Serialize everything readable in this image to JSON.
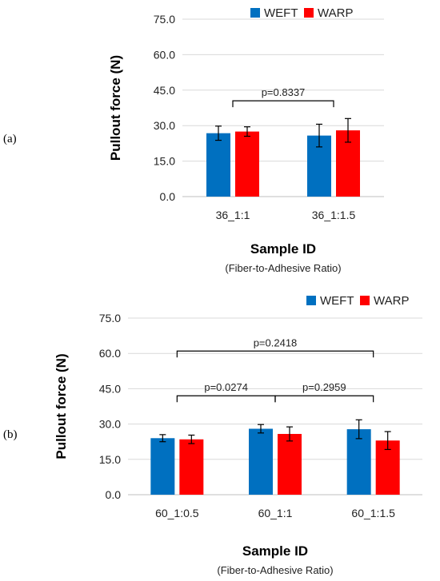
{
  "panels": [
    {
      "label": "(a)",
      "chart_data": {
        "type": "bar",
        "categories": [
          "36_1:1",
          "36_1:1.5"
        ],
        "series": [
          {
            "name": "WEFT",
            "color": "#0070C0",
            "values": [
              26.8,
              25.8
            ],
            "errors": [
              3.0,
              4.8
            ]
          },
          {
            "name": "WARP",
            "color": "#FF0000",
            "values": [
              27.5,
              28.0
            ],
            "errors": [
              2.0,
              5.0
            ]
          }
        ],
        "ylim": [
          0,
          75
        ],
        "yticks": [
          "0.0",
          "15.0",
          "30.0",
          "45.0",
          "60.0",
          "75.0"
        ],
        "ylabel": "Pullout force (N)",
        "xlabel": "Sample ID",
        "xsublabel": "(Fiber-to-Adhesive Ratio)",
        "legend_position": "top-right",
        "annotations": [
          {
            "text": "p=0.8337",
            "from": 0,
            "to": 1,
            "y": 40.5
          }
        ]
      }
    },
    {
      "label": "(b)",
      "chart_data": {
        "type": "bar",
        "categories": [
          "60_1:0.5",
          "60_1:1",
          "60_1:1.5"
        ],
        "series": [
          {
            "name": "WEFT",
            "color": "#0070C0",
            "values": [
              24.0,
              28.0,
              27.8
            ],
            "errors": [
              1.5,
              1.8,
              4.0
            ]
          },
          {
            "name": "WARP",
            "color": "#FF0000",
            "values": [
              23.5,
              25.8,
              23.0
            ],
            "errors": [
              1.8,
              3.0,
              3.8
            ]
          }
        ],
        "ylim": [
          0,
          75
        ],
        "yticks": [
          "0.0",
          "15.0",
          "30.0",
          "45.0",
          "60.0",
          "75.0"
        ],
        "ylabel": "Pullout force (N)",
        "xlabel": "Sample ID",
        "xsublabel": "(Fiber-to-Adhesive Ratio)",
        "legend_position": "top-right",
        "annotations": [
          {
            "text": "p=0.0274",
            "from": 0,
            "to": 1,
            "y": 42
          },
          {
            "text": "p=0.2959",
            "from": 1,
            "to": 2,
            "y": 42
          },
          {
            "text": "p=0.2418",
            "from": 0,
            "to": 2,
            "y": 61
          }
        ]
      }
    }
  ]
}
